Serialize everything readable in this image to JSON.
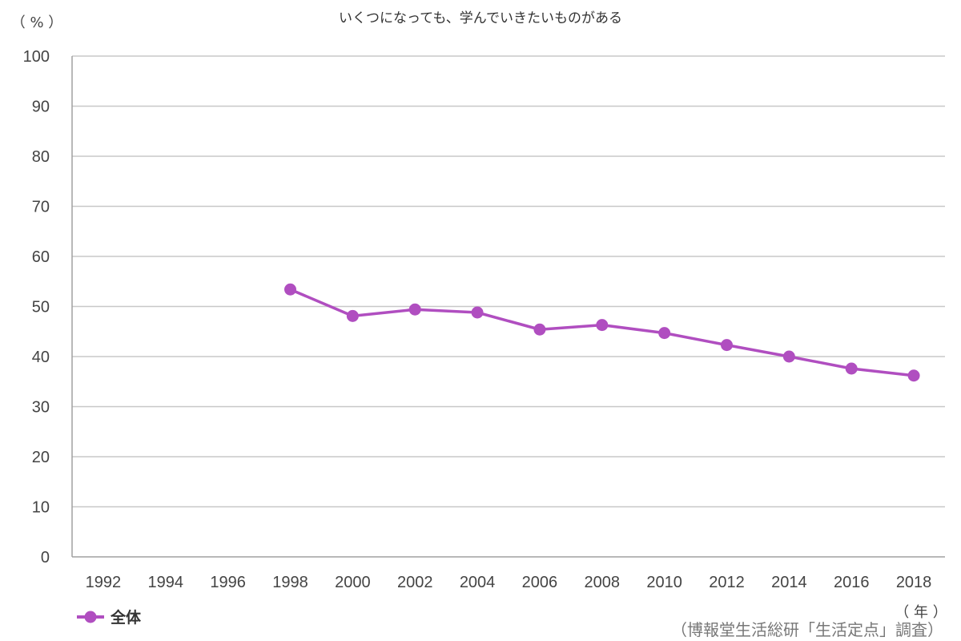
{
  "chart_data": {
    "type": "line",
    "title": "いくつになっても、学んでいきたいものがある",
    "ylabel": "（ % ）",
    "xlabel": "（ 年 ）",
    "source": "（博報堂生活総研「生活定点」調査）",
    "categories": [
      "1992",
      "1994",
      "1996",
      "1998",
      "2000",
      "2002",
      "2004",
      "2006",
      "2008",
      "2010",
      "2012",
      "2014",
      "2016",
      "2018"
    ],
    "yticks": [
      "0",
      "10",
      "20",
      "30",
      "40",
      "50",
      "60",
      "70",
      "80",
      "90",
      "100"
    ],
    "ylim": [
      0,
      100
    ],
    "grid": true,
    "legend_position": "bottom-left",
    "series": [
      {
        "name": "全体",
        "color": "#b04ec0",
        "values": [
          null,
          null,
          null,
          53.4,
          48.1,
          49.4,
          48.8,
          45.4,
          46.3,
          44.7,
          42.3,
          40.0,
          37.6,
          36.2
        ]
      }
    ]
  }
}
